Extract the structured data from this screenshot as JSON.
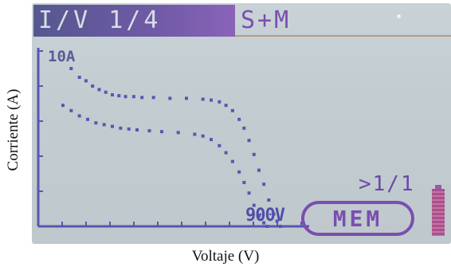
{
  "axis": {
    "ylabel": "Corriente (A)",
    "xlabel": "Voltaje  (V)"
  },
  "screen": {
    "header": {
      "title": "I/V 1/4",
      "mode": "S+M"
    },
    "range_label": "10A",
    "voltage_label": "900V",
    "page_indicator": ">1/1",
    "mem_label": "MEM",
    "battery_level": 1.0
  },
  "colors": {
    "curve": "#5a55b0",
    "accent": "#7a4fb0",
    "header": "#6f5aa6",
    "lcd": "#c6cfd3"
  },
  "chart_data": {
    "type": "scatter",
    "ylim": [
      0,
      10
    ],
    "series": [
      {
        "x": [
          40,
          50,
          58,
          66,
          74,
          82,
          90,
          98,
          106,
          116,
          126,
          140,
          160,
          180,
          200,
          210,
          220,
          228,
          236,
          244,
          250,
          256,
          262,
          268,
          274,
          280,
          286,
          290,
          294
        ],
        "y": [
          9.0,
          8.5,
          8.3,
          8.0,
          7.8,
          7.65,
          7.5,
          7.45,
          7.4,
          7.4,
          7.35,
          7.35,
          7.3,
          7.3,
          7.25,
          7.2,
          7.1,
          6.9,
          6.6,
          6.1,
          5.6,
          4.9,
          4.1,
          3.2,
          2.4,
          1.5,
          0.7,
          0.3,
          0.0
        ]
      },
      {
        "x": [
          30,
          40,
          50,
          60,
          70,
          80,
          90,
          100,
          110,
          120,
          135,
          150,
          170,
          190,
          200,
          210,
          220,
          228,
          236,
          244,
          250,
          256,
          262,
          268,
          274,
          278
        ],
        "y": [
          6.9,
          6.6,
          6.3,
          6.1,
          5.9,
          5.8,
          5.7,
          5.6,
          5.55,
          5.5,
          5.45,
          5.4,
          5.35,
          5.25,
          5.15,
          4.95,
          4.6,
          4.2,
          3.7,
          3.1,
          2.5,
          1.9,
          1.2,
          0.6,
          0.2,
          0.0
        ]
      }
    ]
  }
}
